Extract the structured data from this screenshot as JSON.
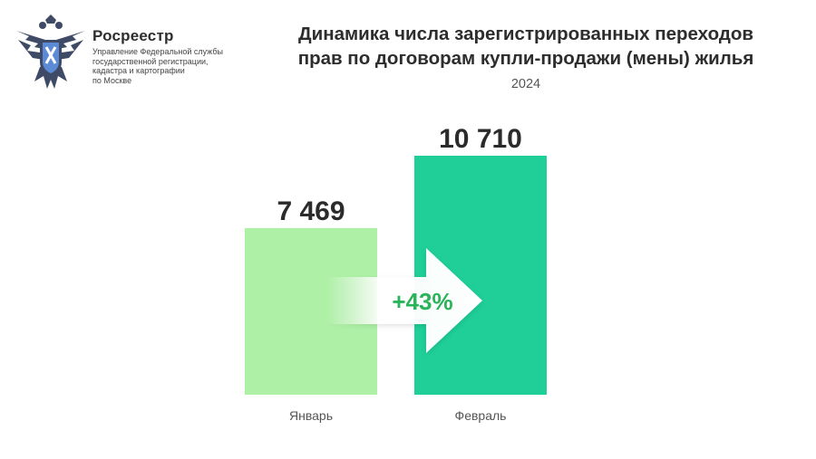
{
  "header": {
    "org_name": "Росреестр",
    "org_subtitle_lines": [
      "Управление Федеральной службы",
      "государственной регистрации,",
      "кадастра и картографии",
      "по Москве"
    ],
    "logo": "double-headed-eagle-emblem"
  },
  "chart_data": {
    "type": "bar",
    "title_lines": [
      "Динамика числа зарегистрированных переходов",
      "прав по договорам купли-продажи (мены) жилья"
    ],
    "subtitle": "2024",
    "categories": [
      "Январь",
      "Февраль"
    ],
    "values": [
      7469,
      10710
    ],
    "value_labels": [
      "7 469",
      "10 710"
    ],
    "ylim": [
      0,
      10710
    ],
    "bar_colors": [
      "#aef0a6",
      "#1fcf97"
    ],
    "annotation": {
      "label": "+43%",
      "color": "#2bb35a",
      "shape": "arrow-right"
    },
    "grid": false,
    "legend": "none"
  }
}
